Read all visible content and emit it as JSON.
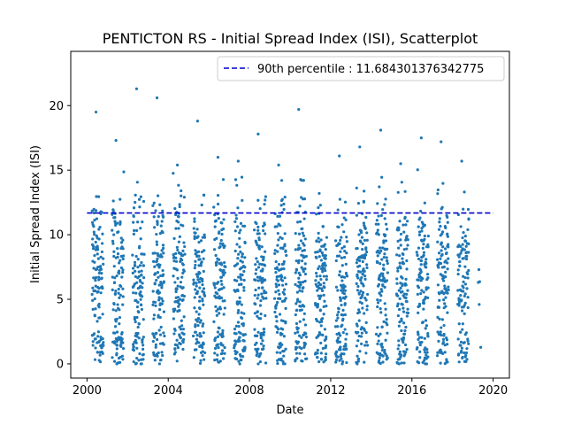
{
  "chart_data": {
    "type": "scatter",
    "title": "PENTICTON RS - Initial Spread Index (ISI), Scatterplot",
    "xlabel": "Date",
    "ylabel": "Initial Spread Index (ISI)",
    "xlim": [
      1999.2,
      2020.8
    ],
    "ylim": [
      -1.1,
      24.2
    ],
    "x_ticks": [
      2000,
      2004,
      2008,
      2012,
      2016,
      2020
    ],
    "x_tick_labels": [
      "2000",
      "2004",
      "2008",
      "2012",
      "2016",
      "2020"
    ],
    "y_ticks": [
      0,
      5,
      10,
      15,
      20
    ],
    "y_tick_labels": [
      "0",
      "5",
      "10",
      "15",
      "20"
    ],
    "grid": false,
    "legend_position": "upper-right",
    "point_color": "#1f77b4",
    "reference_line": {
      "label": "90th percentile : 11.684301376342775",
      "value": 11.684301376342775,
      "color": "#0000cc",
      "style": "dashed"
    },
    "seasons": [
      {
        "year": 2000,
        "points": 120,
        "max": 19.5
      },
      {
        "year": 2001,
        "points": 120,
        "max": 17.3
      },
      {
        "year": 2002,
        "points": 120,
        "max": 21.3
      },
      {
        "year": 2003,
        "points": 120,
        "max": 20.6
      },
      {
        "year": 2004,
        "points": 120,
        "max": 15.4
      },
      {
        "year": 2005,
        "points": 120,
        "max": 18.8
      },
      {
        "year": 2006,
        "points": 120,
        "max": 16.0
      },
      {
        "year": 2007,
        "points": 120,
        "max": 15.7
      },
      {
        "year": 2008,
        "points": 120,
        "max": 17.8
      },
      {
        "year": 2009,
        "points": 120,
        "max": 15.4
      },
      {
        "year": 2010,
        "points": 120,
        "max": 19.7
      },
      {
        "year": 2011,
        "points": 120,
        "max": 13.2
      },
      {
        "year": 2012,
        "points": 120,
        "max": 16.1
      },
      {
        "year": 2013,
        "points": 120,
        "max": 16.8
      },
      {
        "year": 2014,
        "points": 120,
        "max": 18.1
      },
      {
        "year": 2015,
        "points": 120,
        "max": 15.5
      },
      {
        "year": 2016,
        "points": 120,
        "max": 17.5
      },
      {
        "year": 2017,
        "points": 120,
        "max": 17.2
      },
      {
        "year": 2018,
        "points": 110,
        "max": 15.7
      },
      {
        "year": 2019,
        "points": 5,
        "max": 7.3
      }
    ]
  }
}
